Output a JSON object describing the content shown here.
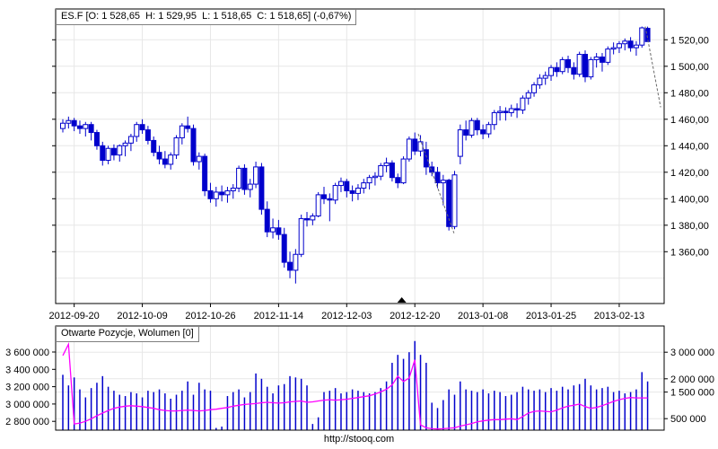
{
  "price_panel": {
    "title": "ES.F [O: 1 528,65  H: 1 529,95  L: 1 518,65  C: 1 518,65] (-0,67%)"
  },
  "volume_panel": {
    "title": "Otwarte Pozycje, Wolumen [0]"
  },
  "footer": {
    "url": "http://stooq.com"
  },
  "colors": {
    "candle": "#0000cc",
    "volume_bar": "#0000cc",
    "open_interest_line": "#ff00ff",
    "grid": "#e7e7e7",
    "border": "#000000",
    "overlay_line": "#6b6b6b",
    "marker": "#000000"
  },
  "chart_data": [
    {
      "type": "candlestick",
      "symbol": "ES.F",
      "title": "ES.F [O: 1 528,65  H: 1 529,95  L: 1 518,65  C: 1 518,65] (-0,67%)",
      "open": 1528.65,
      "high": 1529.95,
      "low": 1518.65,
      "close": 1518.65,
      "change_pct": "-0,67%",
      "grid": true,
      "legend_position": "none",
      "ylim": [
        1321,
        1543
      ],
      "x_tick_indices": [
        2,
        14,
        26,
        38,
        50,
        62,
        74,
        86,
        98
      ],
      "x_tick_labels": [
        "2012-09-20",
        "2012-10-09",
        "2012-10-26",
        "2012-11-14",
        "2012-12-03",
        "2012-12-20",
        "2013-01-08",
        "2013-01-25",
        "2013-02-13"
      ],
      "y_ticks": [
        {
          "value": 1520,
          "label": "1 520,00"
        },
        {
          "value": 1500,
          "label": "1 500,00"
        },
        {
          "value": 1480,
          "label": "1 480,00"
        },
        {
          "value": 1460,
          "label": "1 460,00"
        },
        {
          "value": 1440,
          "label": "1 440,00"
        },
        {
          "value": 1420,
          "label": "1 420,00"
        },
        {
          "value": 1400,
          "label": "1 400,00"
        },
        {
          "value": 1380,
          "label": "1 380,00"
        },
        {
          "value": 1360,
          "label": "1 360,00"
        }
      ],
      "extra_gridline_values": [
        1340
      ],
      "candles_ohlc": [
        [
          1453,
          1460,
          1450,
          1457
        ],
        [
          1457,
          1462,
          1453,
          1459
        ],
        [
          1459,
          1461,
          1451,
          1455
        ],
        [
          1455,
          1459,
          1449,
          1453
        ],
        [
          1453,
          1458,
          1447,
          1456
        ],
        [
          1456,
          1458,
          1444,
          1450
        ],
        [
          1450,
          1452,
          1437,
          1440
        ],
        [
          1440,
          1443,
          1425,
          1429
        ],
        [
          1429,
          1440,
          1426,
          1438
        ],
        [
          1438,
          1441,
          1429,
          1433
        ],
        [
          1433,
          1441,
          1428,
          1440
        ],
        [
          1440,
          1444,
          1432,
          1442
        ],
        [
          1442,
          1449,
          1436,
          1447
        ],
        [
          1447,
          1458,
          1443,
          1456
        ],
        [
          1456,
          1460,
          1449,
          1452
        ],
        [
          1452,
          1455,
          1441,
          1444
        ],
        [
          1444,
          1447,
          1432,
          1435
        ],
        [
          1435,
          1440,
          1426,
          1430
        ],
        [
          1430,
          1436,
          1423,
          1426
        ],
        [
          1426,
          1435,
          1422,
          1433
        ],
        [
          1433,
          1448,
          1430,
          1446
        ],
        [
          1446,
          1457,
          1441,
          1455
        ],
        [
          1455,
          1462,
          1450,
          1453
        ],
        [
          1453,
          1456,
          1425,
          1428
        ],
        [
          1428,
          1435,
          1422,
          1432
        ],
        [
          1432,
          1434,
          1402,
          1406
        ],
        [
          1406,
          1412,
          1397,
          1400
        ],
        [
          1400,
          1409,
          1394,
          1405
        ],
        [
          1405,
          1410,
          1398,
          1403
        ],
        [
          1403,
          1409,
          1397,
          1406
        ],
        [
          1406,
          1411,
          1400,
          1408
        ],
        [
          1408,
          1425,
          1405,
          1423
        ],
        [
          1423,
          1426,
          1403,
          1407
        ],
        [
          1407,
          1415,
          1401,
          1411
        ],
        [
          1411,
          1428,
          1408,
          1424
        ],
        [
          1424,
          1427,
          1388,
          1392
        ],
        [
          1392,
          1398,
          1371,
          1375
        ],
        [
          1375,
          1385,
          1370,
          1378
        ],
        [
          1378,
          1384,
          1369,
          1373
        ],
        [
          1373,
          1378,
          1348,
          1352
        ],
        [
          1352,
          1360,
          1340,
          1346
        ],
        [
          1346,
          1362,
          1336,
          1358
        ],
        [
          1358,
          1388,
          1356,
          1385
        ],
        [
          1385,
          1390,
          1379,
          1384
        ],
        [
          1384,
          1389,
          1380,
          1387
        ],
        [
          1387,
          1405,
          1386,
          1403
        ],
        [
          1403,
          1409,
          1396,
          1400
        ],
        [
          1400,
          1404,
          1383,
          1399
        ],
        [
          1399,
          1412,
          1396,
          1410
        ],
        [
          1410,
          1416,
          1405,
          1413
        ],
        [
          1413,
          1415,
          1401,
          1406
        ],
        [
          1406,
          1410,
          1398,
          1404
        ],
        [
          1404,
          1411,
          1399,
          1408
        ],
        [
          1408,
          1415,
          1404,
          1412
        ],
        [
          1412,
          1418,
          1407,
          1416
        ],
        [
          1416,
          1420,
          1410,
          1417
        ],
        [
          1417,
          1427,
          1414,
          1425
        ],
        [
          1425,
          1431,
          1420,
          1427
        ],
        [
          1427,
          1429,
          1413,
          1416
        ],
        [
          1416,
          1419,
          1408,
          1412
        ],
        [
          1412,
          1432,
          1411,
          1430
        ],
        [
          1430,
          1447,
          1428,
          1445
        ],
        [
          1445,
          1450,
          1433,
          1436
        ],
        [
          1436,
          1448,
          1432,
          1443
        ],
        [
          1437,
          1443,
          1418,
          1424
        ],
        [
          1424,
          1428,
          1417,
          1420
        ],
        [
          1420,
          1424,
          1408,
          1412
        ],
        [
          1412,
          1418,
          1395,
          1414
        ],
        [
          1414,
          1415,
          1376,
          1379
        ],
        [
          1379,
          1421,
          1377,
          1418
        ],
        [
          1432,
          1456,
          1426,
          1452
        ],
        [
          1452,
          1459,
          1444,
          1448
        ],
        [
          1448,
          1461,
          1446,
          1459
        ],
        [
          1459,
          1461,
          1448,
          1452
        ],
        [
          1452,
          1456,
          1445,
          1449
        ],
        [
          1449,
          1458,
          1446,
          1456
        ],
        [
          1456,
          1467,
          1452,
          1465
        ],
        [
          1465,
          1470,
          1459,
          1466
        ],
        [
          1466,
          1469,
          1459,
          1465
        ],
        [
          1465,
          1471,
          1462,
          1468
        ],
        [
          1468,
          1472,
          1461,
          1467
        ],
        [
          1467,
          1478,
          1464,
          1476
        ],
        [
          1476,
          1482,
          1471,
          1480
        ],
        [
          1480,
          1488,
          1477,
          1486
        ],
        [
          1486,
          1494,
          1483,
          1491
        ],
        [
          1491,
          1496,
          1486,
          1493
        ],
        [
          1493,
          1501,
          1489,
          1499
        ],
        [
          1499,
          1503,
          1492,
          1496
        ],
        [
          1496,
          1507,
          1494,
          1505
        ],
        [
          1505,
          1508,
          1495,
          1499
        ],
        [
          1499,
          1503,
          1490,
          1494
        ],
        [
          1494,
          1511,
          1492,
          1509
        ],
        [
          1509,
          1512,
          1488,
          1492
        ],
        [
          1492,
          1507,
          1490,
          1505
        ],
        [
          1505,
          1510,
          1499,
          1507
        ],
        [
          1507,
          1510,
          1496,
          1503
        ],
        [
          1503,
          1515,
          1501,
          1513
        ],
        [
          1513,
          1518,
          1509,
          1514
        ],
        [
          1514,
          1519,
          1510,
          1517
        ],
        [
          1517,
          1521,
          1512,
          1519
        ],
        [
          1519,
          1522,
          1511,
          1514
        ],
        [
          1514,
          1519,
          1508,
          1516
        ],
        [
          1516,
          1530,
          1514,
          1529
        ],
        [
          1528.65,
          1529.95,
          1518.65,
          1518.65
        ]
      ],
      "overlay_lines": [
        {
          "from_index": 62.6,
          "from_price": 1449,
          "to_index": 68.9,
          "to_price": 1374
        },
        {
          "from_index": 102.6,
          "from_price": 1530,
          "to_index": 105.3,
          "to_price": 1469
        }
      ],
      "axis_marker": {
        "index": 59.7,
        "type": "triangle-up"
      }
    },
    {
      "type": "bar+line",
      "title": "Otwarte Pozycje, Wolumen [0]",
      "left_axis_ticks": [
        {
          "value": 3600000,
          "label": "3 600 000"
        },
        {
          "value": 3400000,
          "label": "3 400 000"
        },
        {
          "value": 3200000,
          "label": "3 200 000"
        },
        {
          "value": 3000000,
          "label": "3 000 000"
        },
        {
          "value": 2800000,
          "label": "2 800 000"
        }
      ],
      "right_axis_ticks": [
        {
          "value": 3000000,
          "label": "3 000 000"
        },
        {
          "value": 2000000,
          "label": "2 000 000"
        },
        {
          "value": 1500000,
          "label": "1 500 000"
        },
        {
          "value": 500000,
          "label": "500 000"
        }
      ],
      "volume": [
        2150000,
        1750000,
        2050000,
        1600000,
        1300000,
        1650000,
        1850000,
        2100000,
        1700000,
        1550000,
        1400000,
        1350000,
        1500000,
        1450000,
        1300000,
        1550000,
        1500000,
        1600000,
        1450000,
        1250000,
        1400000,
        1550000,
        1900000,
        1400000,
        1850000,
        1600000,
        1550000,
        150000,
        200000,
        1350000,
        1500000,
        1600000,
        1300000,
        1500000,
        2200000,
        2000000,
        1700000,
        1450000,
        1750000,
        1800000,
        2100000,
        2050000,
        2000000,
        1750000,
        300000,
        550000,
        1500000,
        1550000,
        1650000,
        1450000,
        1500000,
        1600000,
        1550000,
        1500000,
        1450000,
        1500000,
        1650000,
        1900000,
        2600000,
        2900000,
        2750000,
        3000000,
        3420000,
        2900000,
        2600000,
        1100000,
        900000,
        1200000,
        1600000,
        1400000,
        1900000,
        1600000,
        1550000,
        1500000,
        1600000,
        1450000,
        1550000,
        1500000,
        1350000,
        1400000,
        1500000,
        1700000,
        1600000,
        1550000,
        1600000,
        1500000,
        1650000,
        1550000,
        1700000,
        1600000,
        1750000,
        1800000,
        2000000,
        1750000,
        1600000,
        1650000,
        1700000,
        1500000,
        1550000,
        1450000,
        1500000,
        1600000,
        2250000,
        1900000
      ],
      "open_interest": [
        3560000,
        3690000,
        2770000,
        2780000,
        2800000,
        2830000,
        2865000,
        2895000,
        2925000,
        2950000,
        2965000,
        2975000,
        2980000,
        2975000,
        2970000,
        2960000,
        2950000,
        2935000,
        2925000,
        2920000,
        2920000,
        2925000,
        2930000,
        2925000,
        2920000,
        2925000,
        2935000,
        2940000,
        2950000,
        2960000,
        2975000,
        2985000,
        2995000,
        3000000,
        3005000,
        3015000,
        3020000,
        3015000,
        3010000,
        3015000,
        3025000,
        3030000,
        3035000,
        3020000,
        3025000,
        3035000,
        3045000,
        3050000,
        3045000,
        3050000,
        3055000,
        3065000,
        3075000,
        3085000,
        3095000,
        3115000,
        3140000,
        3170000,
        3220000,
        3320000,
        3260000,
        3300000,
        3510000,
        2760000,
        2725000,
        2715000,
        2712000,
        2715000,
        2720000,
        2725000,
        2745000,
        2760000,
        2775000,
        2795000,
        2805000,
        2815000,
        2820000,
        2820000,
        2825000,
        2830000,
        2820000,
        2855000,
        2895000,
        2915000,
        2920000,
        2915000,
        2910000,
        2930000,
        2955000,
        2975000,
        2985000,
        3000000,
        2970000,
        2950000,
        2960000,
        2980000,
        3005000,
        3030000,
        3050000,
        3065000,
        3075000,
        3070000,
        3070000,
        3070000
      ]
    }
  ]
}
